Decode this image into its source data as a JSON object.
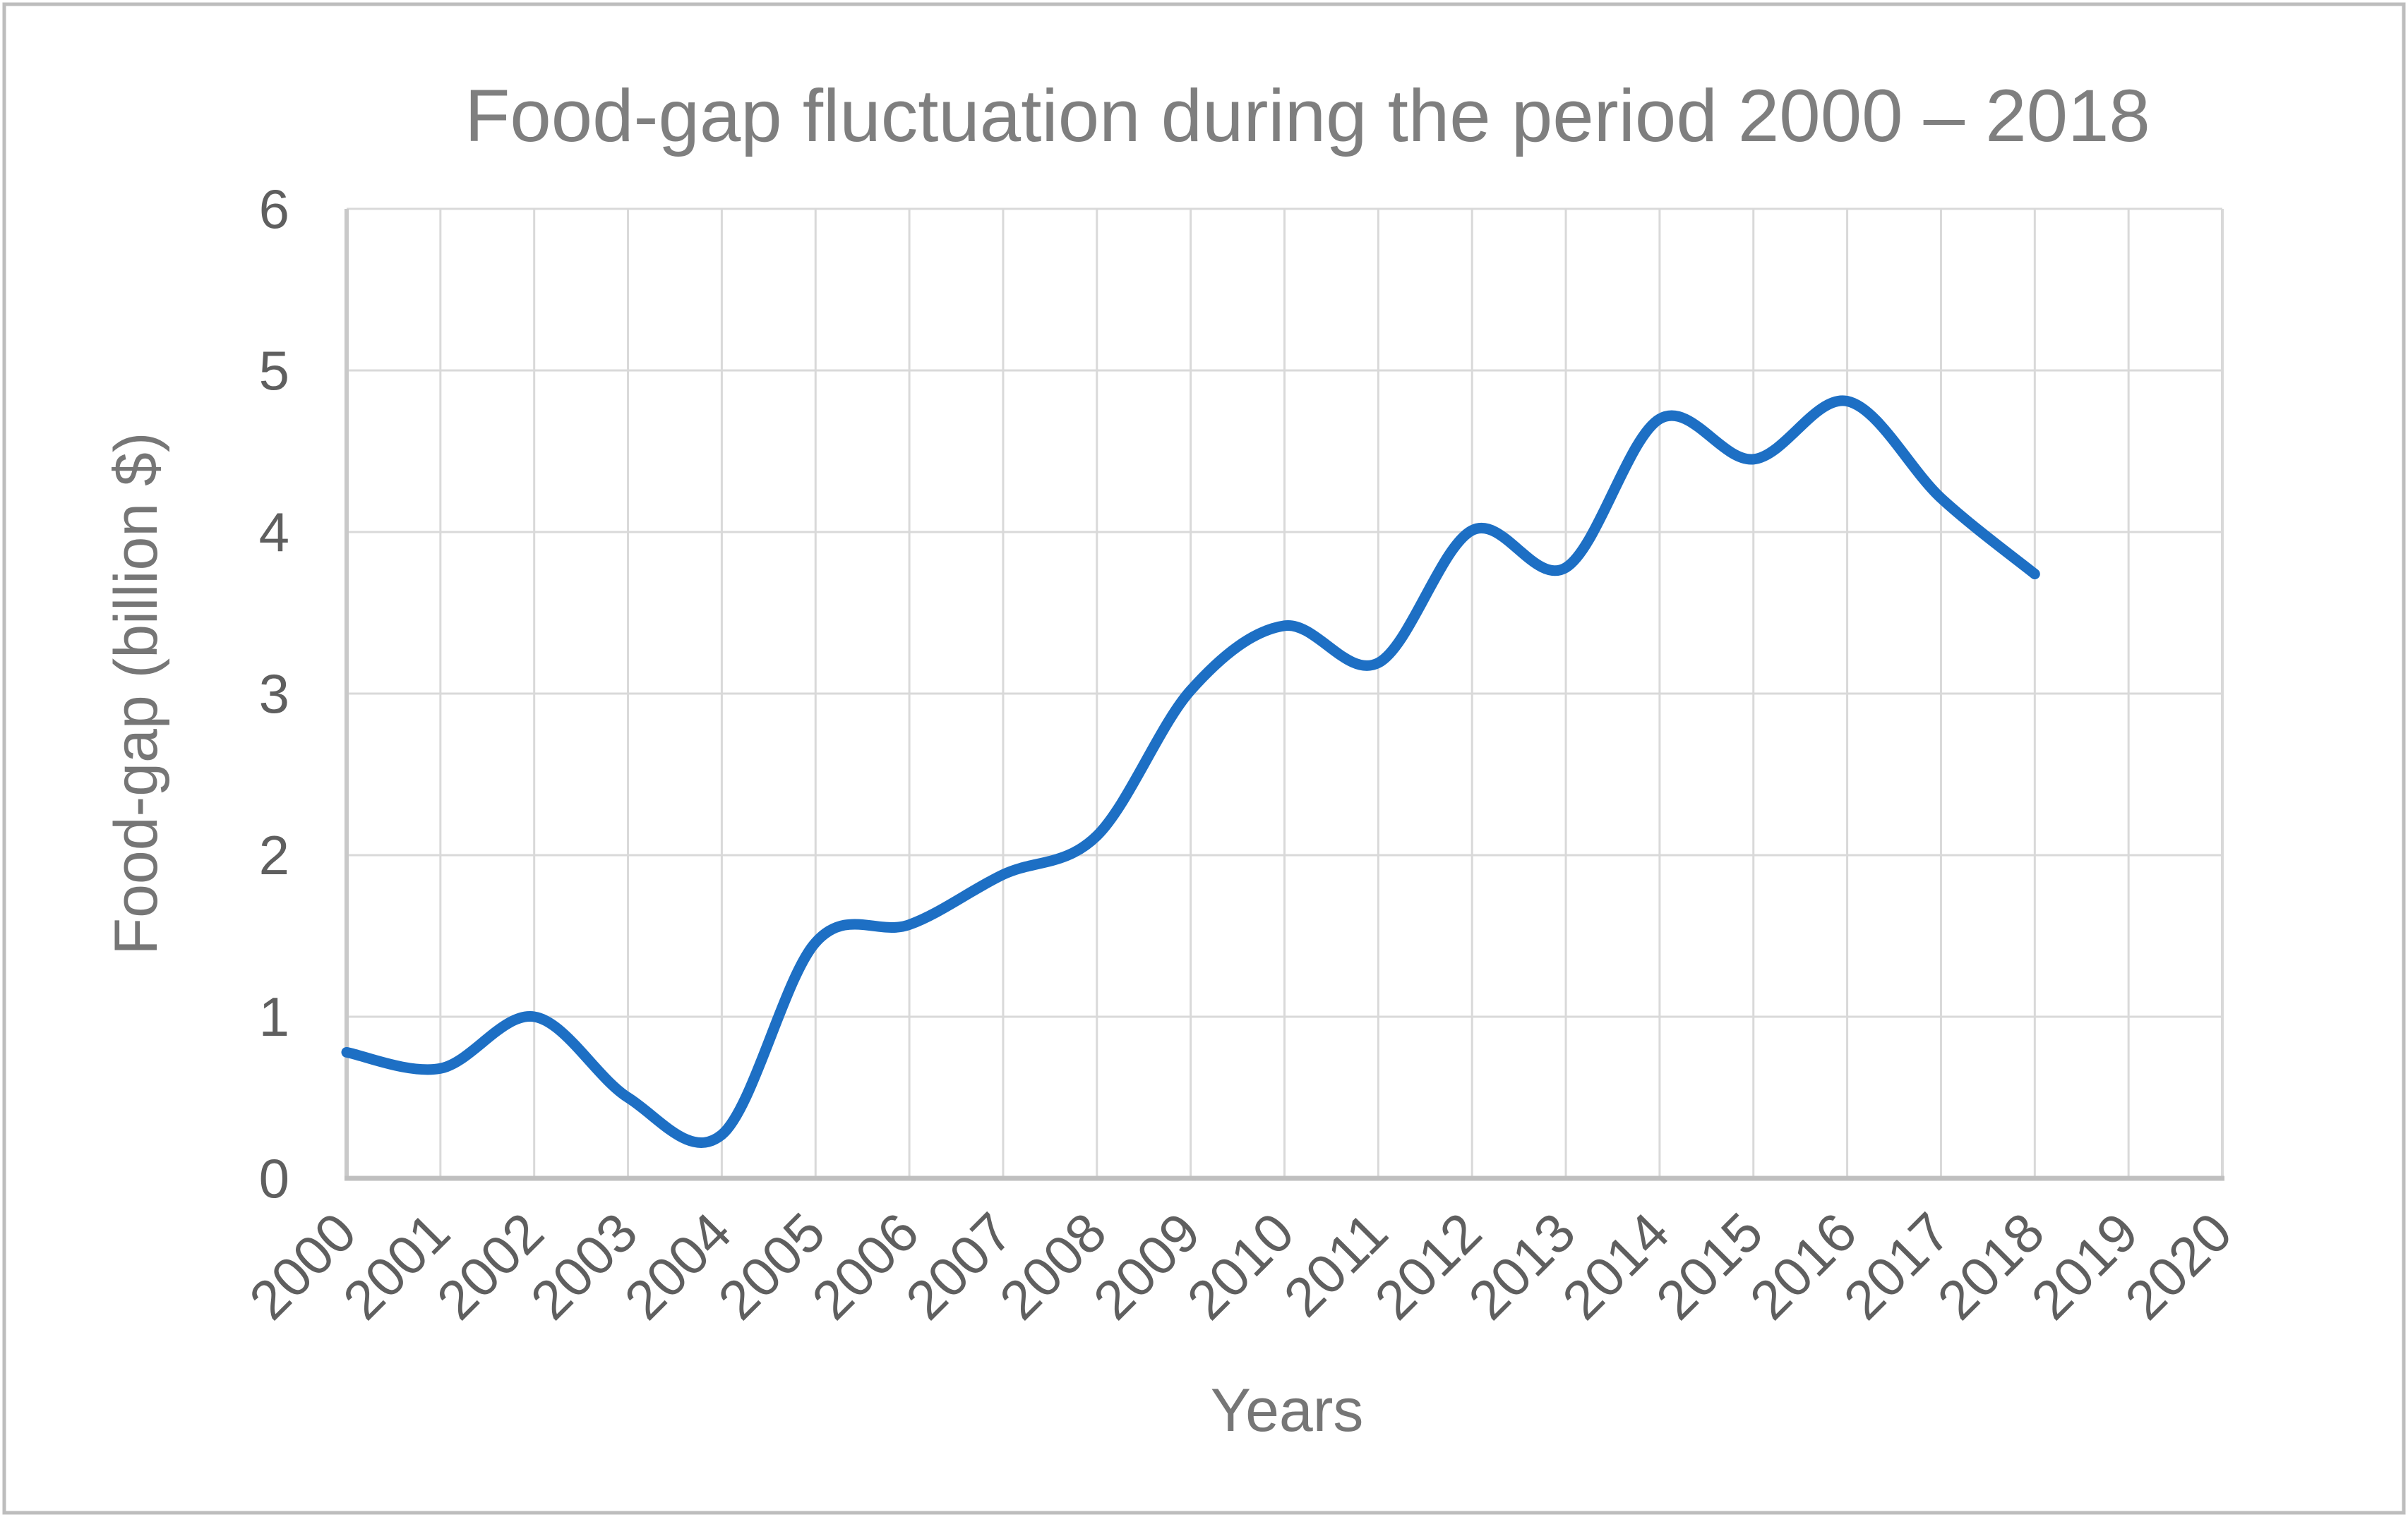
{
  "chart_data": {
    "type": "line",
    "title": "Food-gap fluctuation during the period 2000 – 2018",
    "xlabel": "Years",
    "ylabel": "Food-gap (billion $)",
    "categories": [
      "2000",
      "2001",
      "2002",
      "2003",
      "2004",
      "2005",
      "2006",
      "2007",
      "2008",
      "2009",
      "2010",
      "2011",
      "2012",
      "2013",
      "2014",
      "2015",
      "2016",
      "2017",
      "2018",
      "2019",
      "2020"
    ],
    "y_ticks": [
      0,
      1,
      2,
      3,
      4,
      5,
      6
    ],
    "ylim": [
      0,
      6
    ],
    "grid": true,
    "legend": "none",
    "smooth": true,
    "series": [
      {
        "name": "Food-gap",
        "years": [
          2000,
          2001,
          2002,
          2003,
          2004,
          2005,
          2006,
          2007,
          2008,
          2009,
          2010,
          2011,
          2012,
          2013,
          2014,
          2015,
          2016,
          2017,
          2018
        ],
        "values": [
          0.78,
          0.68,
          1.0,
          0.5,
          0.27,
          1.46,
          1.57,
          1.88,
          2.12,
          3.02,
          3.42,
          3.19,
          4.01,
          3.78,
          4.7,
          4.45,
          4.81,
          4.21,
          3.74
        ]
      }
    ]
  },
  "colors": {
    "line": "#1d6fc4",
    "gridline": "#d9d9d9",
    "axis_line": "#bfbfbf",
    "left_axis_line": "#c9c9c9",
    "tick_label": "#5f5f5f",
    "title": "#7f7f7f",
    "axis_title": "#767676",
    "frame_border": "#bdbdbd",
    "background": "#ffffff"
  }
}
